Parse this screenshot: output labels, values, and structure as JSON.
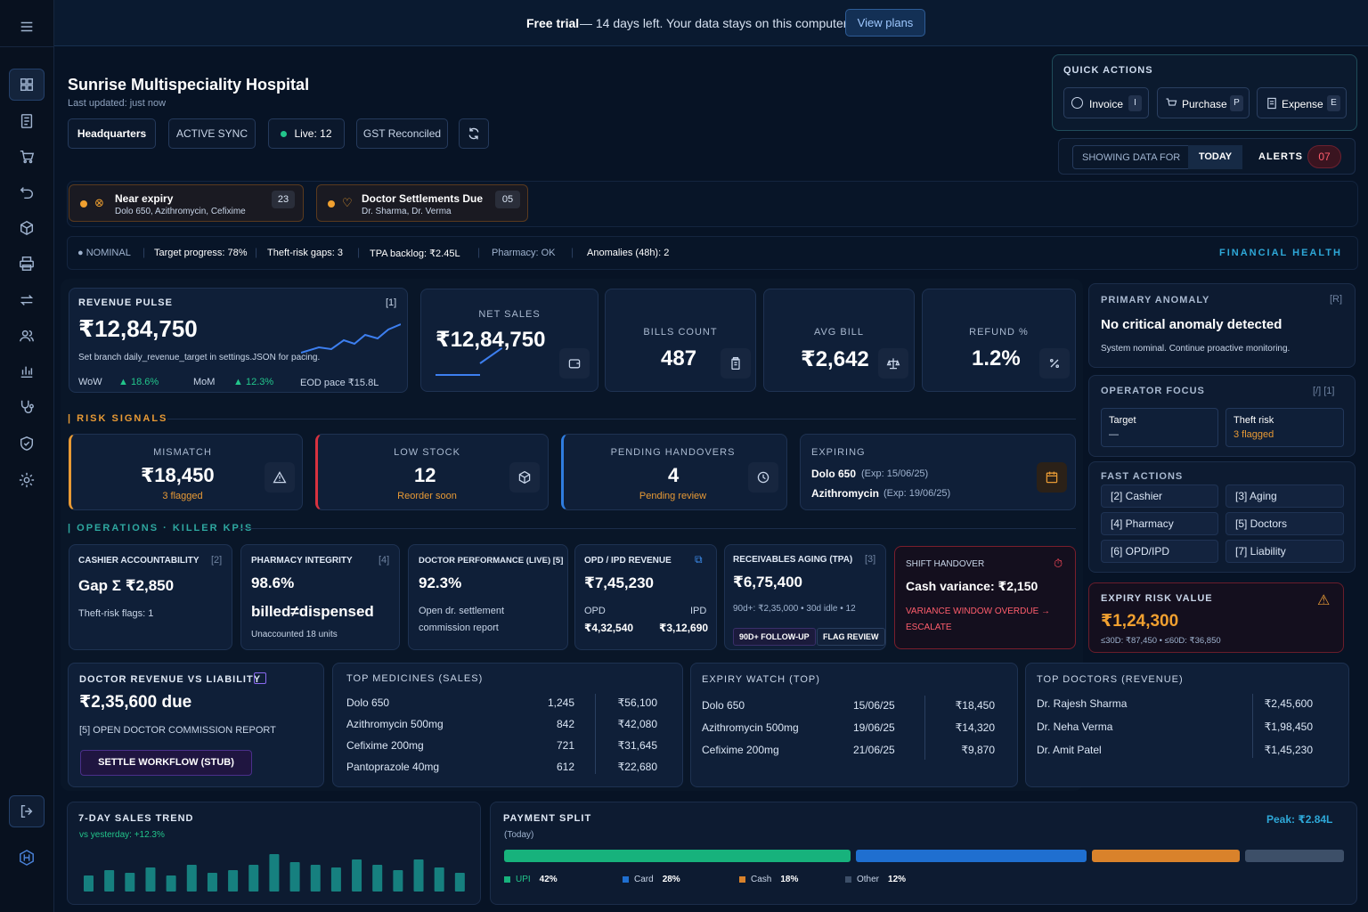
{
  "banner": {
    "trial_bold": "Free trial",
    "trial_text": "— 14 days left. Your data stays on this computer.",
    "view_plans": "View plans"
  },
  "header": {
    "title": "Sunrise Multispeciality Hospital",
    "updated": "Last updated: just now"
  },
  "chips": {
    "hq": "Headquarters",
    "sync": "ACTIVE SYNC",
    "live": "Live:",
    "live_count": "12",
    "gst": "GST Reconciled"
  },
  "quick_actions": {
    "title": "QUICK ACTIONS",
    "items": [
      {
        "label": "Invoice",
        "key": "I"
      },
      {
        "label": "Purchase",
        "key": "P"
      },
      {
        "label": "Expense",
        "key": "E"
      }
    ]
  },
  "date_filter": {
    "showing": "SHOWING DATA FOR",
    "today": "TODAY",
    "alerts": "ALERTS",
    "alerts_count": "07"
  },
  "alerts": [
    {
      "title": "Near expiry",
      "sub": "Dolo 650, Azithromycin, Cefixime",
      "count": "23"
    },
    {
      "title": "Doctor Settlements Due",
      "sub": "Dr. Sharma, Dr. Verma",
      "count": "05"
    }
  ],
  "status_bar": {
    "nominal": "NOMINAL",
    "target": "Target progress: 78%",
    "theft_label": "Theft-risk gaps:",
    "theft": "3",
    "tpa_label": "TPA backlog:",
    "tpa": "₹2.45L",
    "pharmacy": "Pharmacy: OK",
    "anom_label": "Anomalies (48h):",
    "anom": "2",
    "fin": "FINANCIAL HEALTH"
  },
  "revenue_pulse": {
    "title": "REVENUE PULSE",
    "hint": "[1]",
    "value": "₹12,84,750",
    "note": "Set branch daily_revenue_target in settings.JSON for pacing.",
    "wow_label": "WoW",
    "wow": "18.6%",
    "mom_label": "MoM",
    "mom": "12.3%",
    "eod": "EOD pace ₹15.8L"
  },
  "kpis": [
    {
      "label": "NET SALES",
      "value": "₹12,84,750"
    },
    {
      "label": "BILLS COUNT",
      "value": "487"
    },
    {
      "label": "AVG BILL",
      "value": "₹2,642"
    },
    {
      "label": "REFUND %",
      "value": "1.2%"
    }
  ],
  "primary_anomaly": {
    "title": "PRIMARY ANOMALY",
    "key": "[R]",
    "heading": "No critical anomaly detected",
    "sub": "System nominal. Continue proactive monitoring."
  },
  "operator_focus": {
    "title": "OPERATOR FOCUS",
    "keys": "[/] [1]",
    "target_label": "Target",
    "target_val": "—",
    "theft_label": "Theft risk",
    "theft_val": "3 flagged"
  },
  "fast_actions": {
    "title": "FAST ACTIONS",
    "items": [
      "[2] Cashier",
      "[3] Aging",
      "[4] Pharmacy",
      "[5] Doctors",
      "[6] OPD/IPD",
      "[7] Liability"
    ]
  },
  "risk_signals": {
    "title": "RISK SIGNALS",
    "items": [
      {
        "label": "MISMATCH",
        "value": "₹18,450",
        "sub": "3 flagged"
      },
      {
        "label": "LOW STOCK",
        "value": "12",
        "sub": "Reorder soon"
      },
      {
        "label": "PENDING HANDOVERS",
        "value": "4",
        "sub": "Pending review"
      }
    ],
    "expiring": {
      "label": "EXPIRING",
      "rows": [
        {
          "name": "Dolo 650",
          "exp": "(Exp: 15/06/25)"
        },
        {
          "name": "Azithromycin",
          "exp": "(Exp: 19/06/25)"
        }
      ]
    }
  },
  "ops": {
    "title": "OPERATIONS · KILLER KPIS",
    "cashier": {
      "title": "CASHIER ACCOUNTABILITY",
      "key": "[2]",
      "value": "Gap Σ ₹2,850",
      "sub": "Theft-risk flags: 1"
    },
    "pharmacy": {
      "title": "PHARMACY INTEGRITY",
      "key": "[4]",
      "value": "98.6%",
      "big": "billed≠dispensed",
      "sub": "Unaccounted 18 units"
    },
    "doctor": {
      "title": "DOCTOR PERFORMANCE (LIVE) [5]",
      "value": "92.3%",
      "sub1": "Open dr. settlement",
      "sub2": "commission report"
    },
    "opd": {
      "title": "OPD / IPD REVENUE",
      "value": "₹7,45,230",
      "opd_label": "OPD",
      "ipd_label": "IPD",
      "opd": "₹4,32,540",
      "ipd": "₹3,12,690"
    },
    "recv": {
      "title": "RECEIVABLES AGING (TPA)",
      "key": "[3]",
      "value": "₹6,75,400",
      "sub": "90d+: ₹2,35,000 • 30d idle • 12",
      "btn1": "90D+ FOLLOW-UP",
      "btn2": "FLAG REVIEW"
    },
    "shift": {
      "title": "SHIFT HANDOVER",
      "value": "Cash variance: ₹2,150",
      "warn1": "VARIANCE WINDOW OVERDUE →",
      "warn2": "ESCALATE"
    },
    "expiry_risk": {
      "title": "EXPIRY RISK VALUE",
      "value": "₹1,24,300",
      "sub": "≤30D: ₹87,450 • ≤60D: ₹36,850"
    }
  },
  "doctor_rev": {
    "title": "DOCTOR REVENUE VS LIABILITY",
    "value": "₹2,35,600 due",
    "link": "[5] OPEN DOCTOR COMMISSION REPORT",
    "btn": "SETTLE WORKFLOW (STUB)"
  },
  "top_meds": {
    "title": "TOP MEDICINES (SALES)",
    "rows": [
      {
        "name": "Dolo 650",
        "qty": "1,245",
        "amt": "₹56,100"
      },
      {
        "name": "Azithromycin 500mg",
        "qty": "842",
        "amt": "₹42,080"
      },
      {
        "name": "Cefixime 200mg",
        "qty": "721",
        "amt": "₹31,645"
      },
      {
        "name": "Pantoprazole 40mg",
        "qty": "612",
        "amt": "₹22,680"
      }
    ]
  },
  "expiry_watch": {
    "title": "EXPIRY WATCH (TOP)",
    "rows": [
      {
        "name": "Dolo 650",
        "date": "15/06/25",
        "amt": "₹18,450"
      },
      {
        "name": "Azithromycin 500mg",
        "date": "19/06/25",
        "amt": "₹14,320"
      },
      {
        "name": "Cefixime 200mg",
        "date": "21/06/25",
        "amt": "₹9,870"
      }
    ]
  },
  "top_doctors": {
    "title": "TOP DOCTORS (REVENUE)",
    "rows": [
      {
        "name": "Dr. Rajesh Sharma",
        "amt": "₹2,45,600"
      },
      {
        "name": "Dr. Neha Verma",
        "amt": "₹1,98,450"
      },
      {
        "name": "Dr. Amit Patel",
        "amt": "₹1,45,230"
      }
    ]
  },
  "sales_trend": {
    "title": "7-DAY SALES TREND",
    "sub": "vs yesterday: +12.3%"
  },
  "payment_split": {
    "title": "PAYMENT SPLIT",
    "sub": "(Today)",
    "peak": "Peak: ₹2.84L"
  },
  "chart_data": [
    {
      "type": "bar",
      "title": "7-DAY SALES TREND",
      "values": [
        3,
        4,
        3.5,
        4.5,
        3,
        5,
        3.5,
        4,
        5,
        7,
        5.5,
        5,
        4.5,
        6,
        5,
        4,
        6,
        4.5,
        3.5
      ],
      "color": "#1aa39a"
    },
    {
      "type": "bar",
      "title": "PAYMENT SPLIT",
      "series": [
        {
          "name": "UPI",
          "value": 42,
          "color": "#17b27c"
        },
        {
          "name": "Card",
          "value": 28,
          "color": "#1f6fd0"
        },
        {
          "name": "Cash",
          "value": 18,
          "color": "#d9822b"
        },
        {
          "name": "Other",
          "value": 12,
          "color": "#3d4f68"
        }
      ]
    }
  ]
}
